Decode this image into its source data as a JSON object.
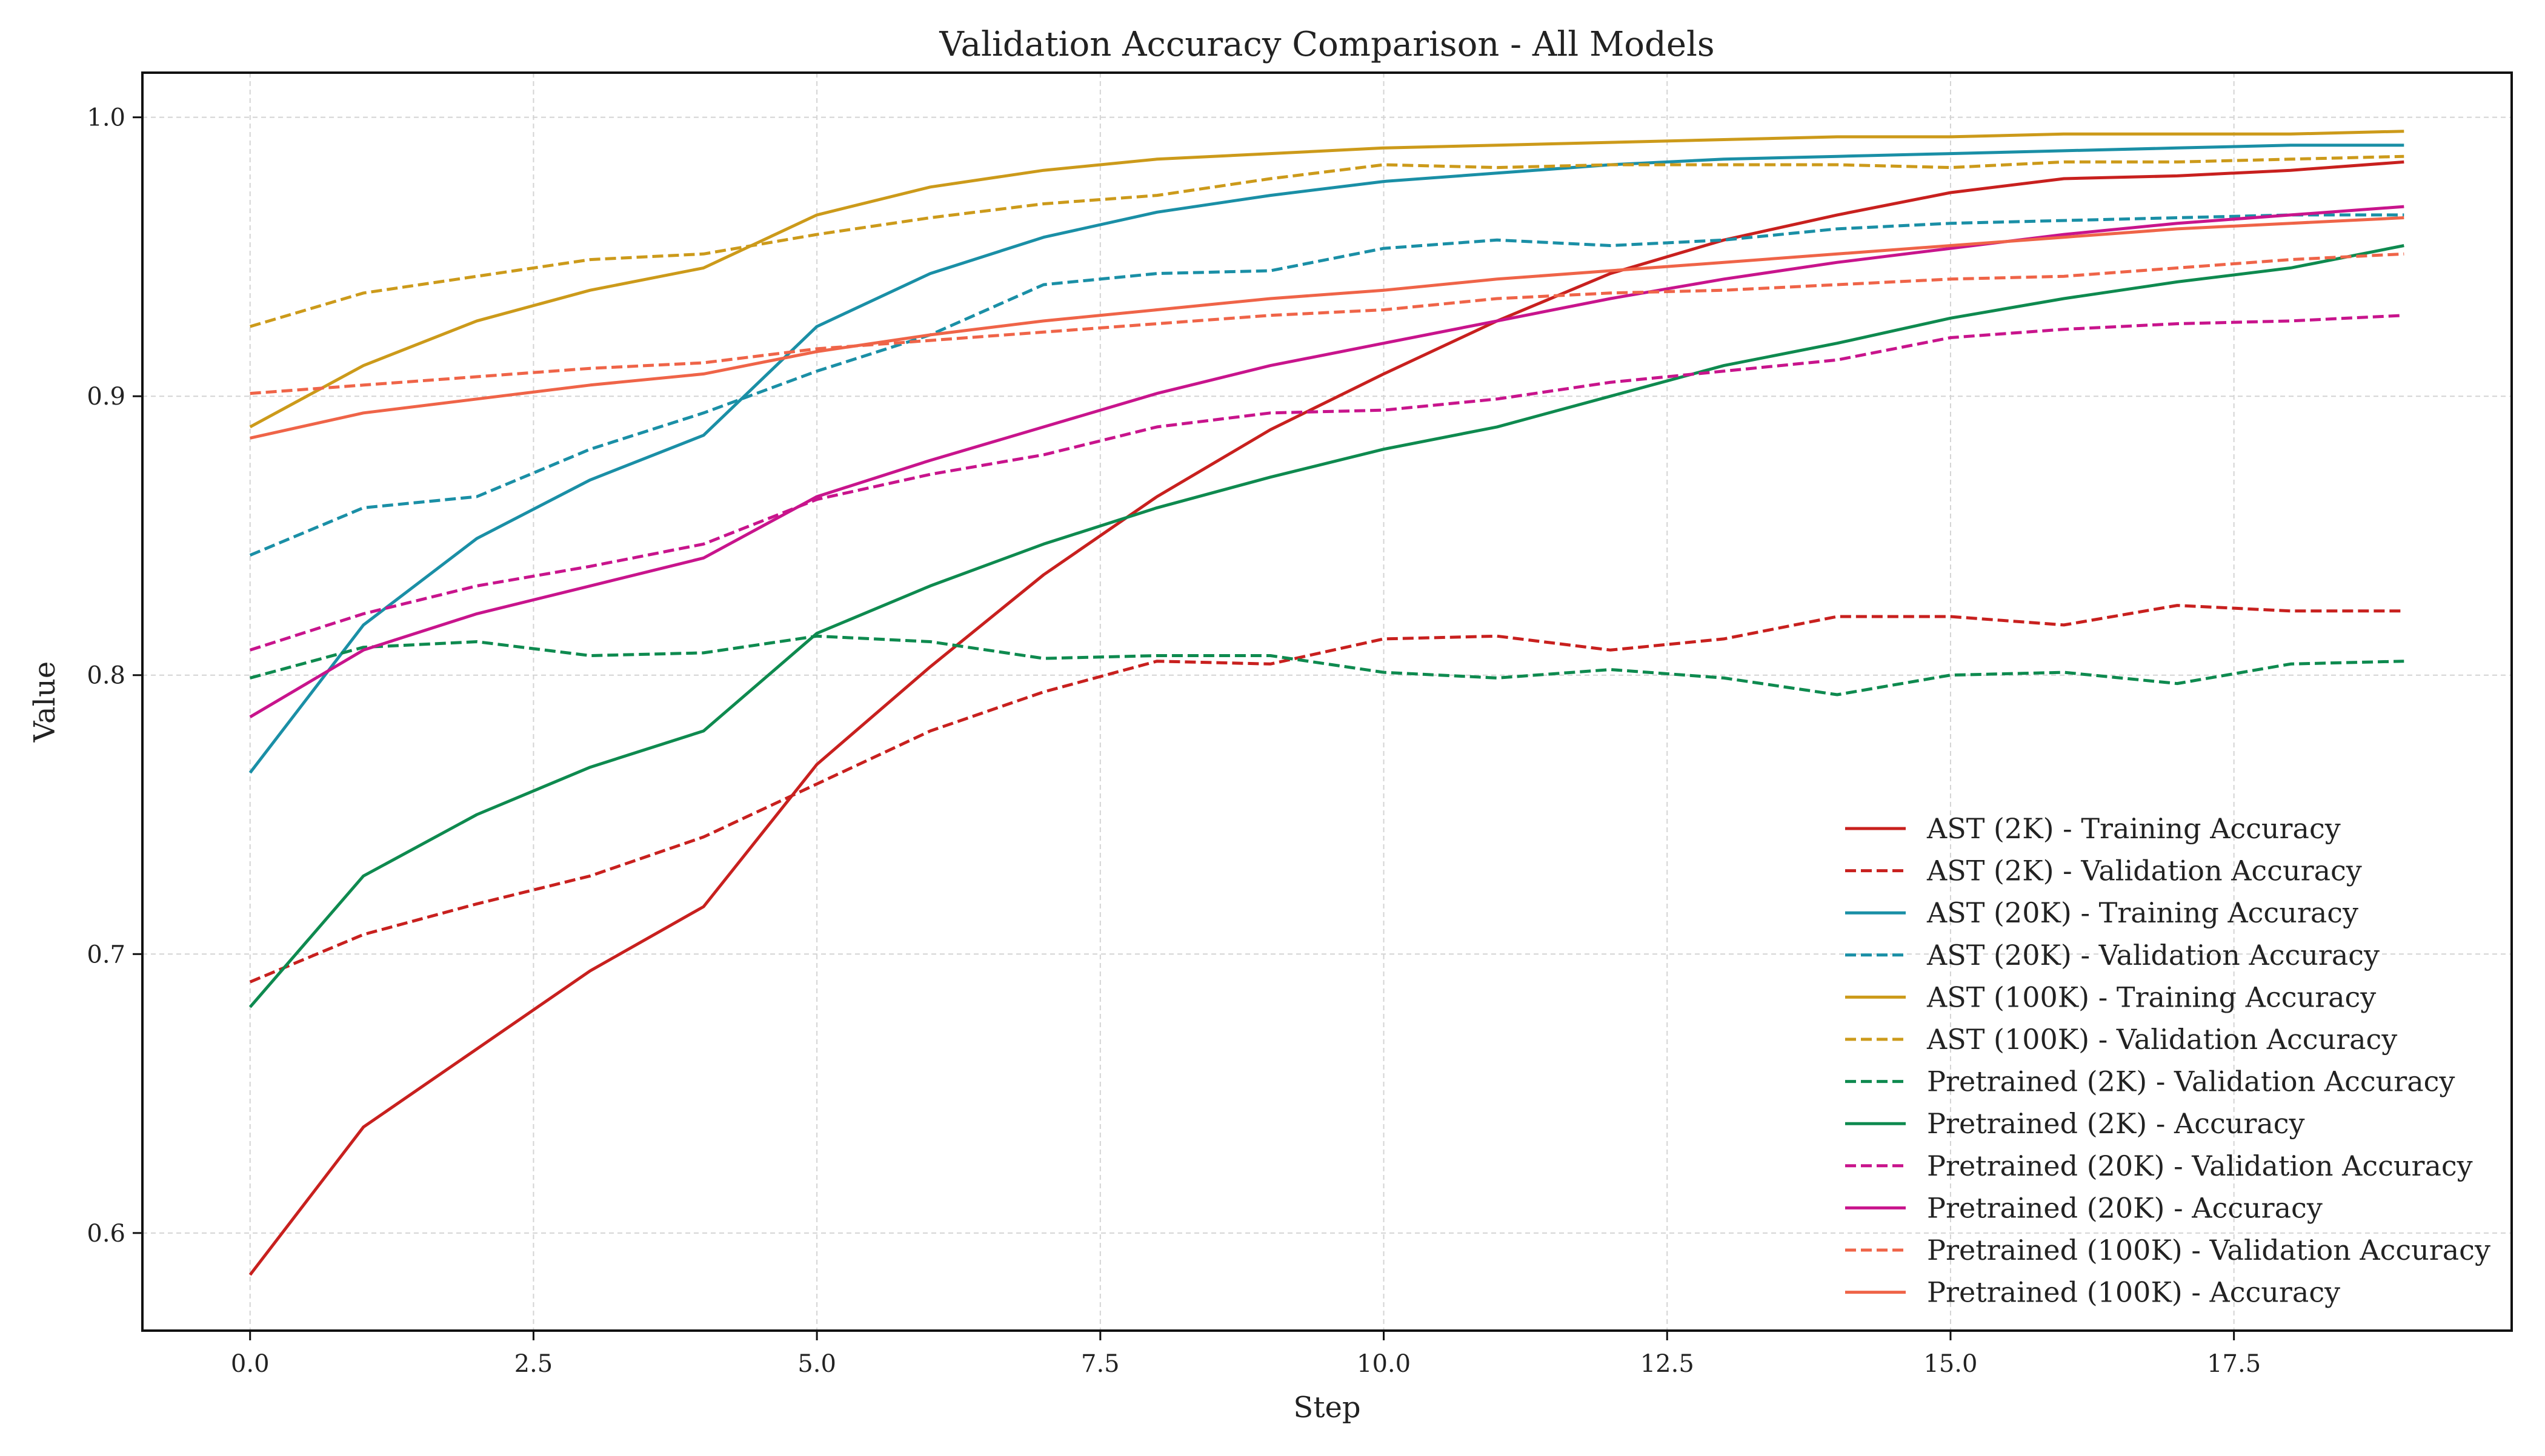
{
  "chart_data": {
    "type": "line",
    "title": "Validation Accuracy Comparison - All Models",
    "xlabel": "Step",
    "ylabel": "Value",
    "xlim": [
      -0.95,
      19.95
    ],
    "ylim": [
      0.565,
      1.016
    ],
    "xticks": [
      0,
      2.5,
      5,
      7.5,
      10,
      12.5,
      15,
      17.5
    ],
    "xtick_labels": [
      "0.0",
      "2.5",
      "5.0",
      "7.5",
      "10.0",
      "12.5",
      "15.0",
      "17.5"
    ],
    "yticks": [
      0.6,
      0.7,
      0.8,
      0.9,
      1.0
    ],
    "ytick_labels": [
      "0.6",
      "0.7",
      "0.8",
      "0.9",
      "1.0"
    ],
    "grid": true,
    "legend_position": "lower-right",
    "x": [
      0,
      1,
      2,
      3,
      4,
      5,
      6,
      7,
      8,
      9,
      10,
      11,
      12,
      13,
      14,
      15,
      16,
      17,
      18,
      19
    ],
    "series": [
      {
        "name": "AST (2K) - Training Accuracy",
        "color": "#c8201e",
        "dash": "solid",
        "values": [
          0.585,
          0.638,
          0.666,
          0.694,
          0.717,
          0.768,
          0.803,
          0.836,
          0.864,
          0.888,
          0.908,
          0.927,
          0.944,
          0.956,
          0.965,
          0.973,
          0.978,
          0.979,
          0.981,
          0.984
        ]
      },
      {
        "name": "AST (2K) - Validation Accuracy",
        "color": "#c8201e",
        "dash": "dashed",
        "values": [
          0.69,
          0.707,
          0.718,
          0.728,
          0.742,
          0.761,
          0.78,
          0.794,
          0.805,
          0.804,
          0.813,
          0.814,
          0.809,
          0.813,
          0.821,
          0.821,
          0.818,
          0.825,
          0.823,
          0.823
        ]
      },
      {
        "name": "AST (20K) - Training Accuracy",
        "color": "#1a8fa6",
        "dash": "solid",
        "values": [
          0.765,
          0.818,
          0.849,
          0.87,
          0.886,
          0.925,
          0.944,
          0.957,
          0.966,
          0.972,
          0.977,
          0.98,
          0.983,
          0.985,
          0.986,
          0.987,
          0.988,
          0.989,
          0.99,
          0.99
        ]
      },
      {
        "name": "AST (20K) - Validation Accuracy",
        "color": "#1a8fa6",
        "dash": "dashed",
        "values": [
          0.843,
          0.86,
          0.864,
          0.881,
          0.894,
          0.909,
          0.922,
          0.94,
          0.944,
          0.945,
          0.953,
          0.956,
          0.954,
          0.956,
          0.96,
          0.962,
          0.963,
          0.964,
          0.965,
          0.965
        ]
      },
      {
        "name": "AST (100K) - Training Accuracy",
        "color": "#cc9a1a",
        "dash": "solid",
        "values": [
          0.889,
          0.911,
          0.927,
          0.938,
          0.946,
          0.965,
          0.975,
          0.981,
          0.985,
          0.987,
          0.989,
          0.99,
          0.991,
          0.992,
          0.993,
          0.993,
          0.994,
          0.994,
          0.994,
          0.995
        ]
      },
      {
        "name": "AST (100K) - Validation Accuracy",
        "color": "#cc9a1a",
        "dash": "dashed",
        "values": [
          0.925,
          0.937,
          0.943,
          0.949,
          0.951,
          0.958,
          0.964,
          0.969,
          0.972,
          0.978,
          0.983,
          0.982,
          0.983,
          0.983,
          0.983,
          0.982,
          0.984,
          0.984,
          0.985,
          0.986
        ]
      },
      {
        "name": "Pretrained (2K) - Validation Accuracy",
        "color": "#0e8a4f",
        "dash": "dashed",
        "values": [
          0.799,
          0.81,
          0.812,
          0.807,
          0.808,
          0.814,
          0.812,
          0.806,
          0.807,
          0.807,
          0.801,
          0.799,
          0.802,
          0.799,
          0.793,
          0.8,
          0.801,
          0.797,
          0.804,
          0.805
        ]
      },
      {
        "name": "Pretrained (2K) - Accuracy",
        "color": "#0e8a4f",
        "dash": "solid",
        "values": [
          0.681,
          0.728,
          0.75,
          0.767,
          0.78,
          0.815,
          0.832,
          0.847,
          0.86,
          0.871,
          0.881,
          0.889,
          0.9,
          0.911,
          0.919,
          0.928,
          0.935,
          0.941,
          0.946,
          0.954
        ]
      },
      {
        "name": "Pretrained (20K) - Validation Accuracy",
        "color": "#c8148c",
        "dash": "dashed",
        "values": [
          0.809,
          0.822,
          0.832,
          0.839,
          0.847,
          0.863,
          0.872,
          0.879,
          0.889,
          0.894,
          0.895,
          0.899,
          0.905,
          0.909,
          0.913,
          0.921,
          0.924,
          0.926,
          0.927,
          0.929
        ]
      },
      {
        "name": "Pretrained (20K) - Accuracy",
        "color": "#c8148c",
        "dash": "solid",
        "values": [
          0.785,
          0.809,
          0.822,
          0.832,
          0.842,
          0.864,
          0.877,
          0.889,
          0.901,
          0.911,
          0.919,
          0.927,
          0.935,
          0.942,
          0.948,
          0.953,
          0.958,
          0.962,
          0.965,
          0.968
        ]
      },
      {
        "name": "Pretrained (100K) - Validation Accuracy",
        "color": "#ef6448",
        "dash": "dashed",
        "values": [
          0.901,
          0.904,
          0.907,
          0.91,
          0.912,
          0.917,
          0.92,
          0.923,
          0.926,
          0.929,
          0.931,
          0.935,
          0.937,
          0.938,
          0.94,
          0.942,
          0.943,
          0.946,
          0.949,
          0.951
        ]
      },
      {
        "name": "Pretrained (100K) - Accuracy",
        "color": "#ef6448",
        "dash": "solid",
        "values": [
          0.885,
          0.894,
          0.899,
          0.904,
          0.908,
          0.916,
          0.922,
          0.927,
          0.931,
          0.935,
          0.938,
          0.942,
          0.945,
          0.948,
          0.951,
          0.954,
          0.957,
          0.96,
          0.962,
          0.964
        ]
      }
    ]
  }
}
